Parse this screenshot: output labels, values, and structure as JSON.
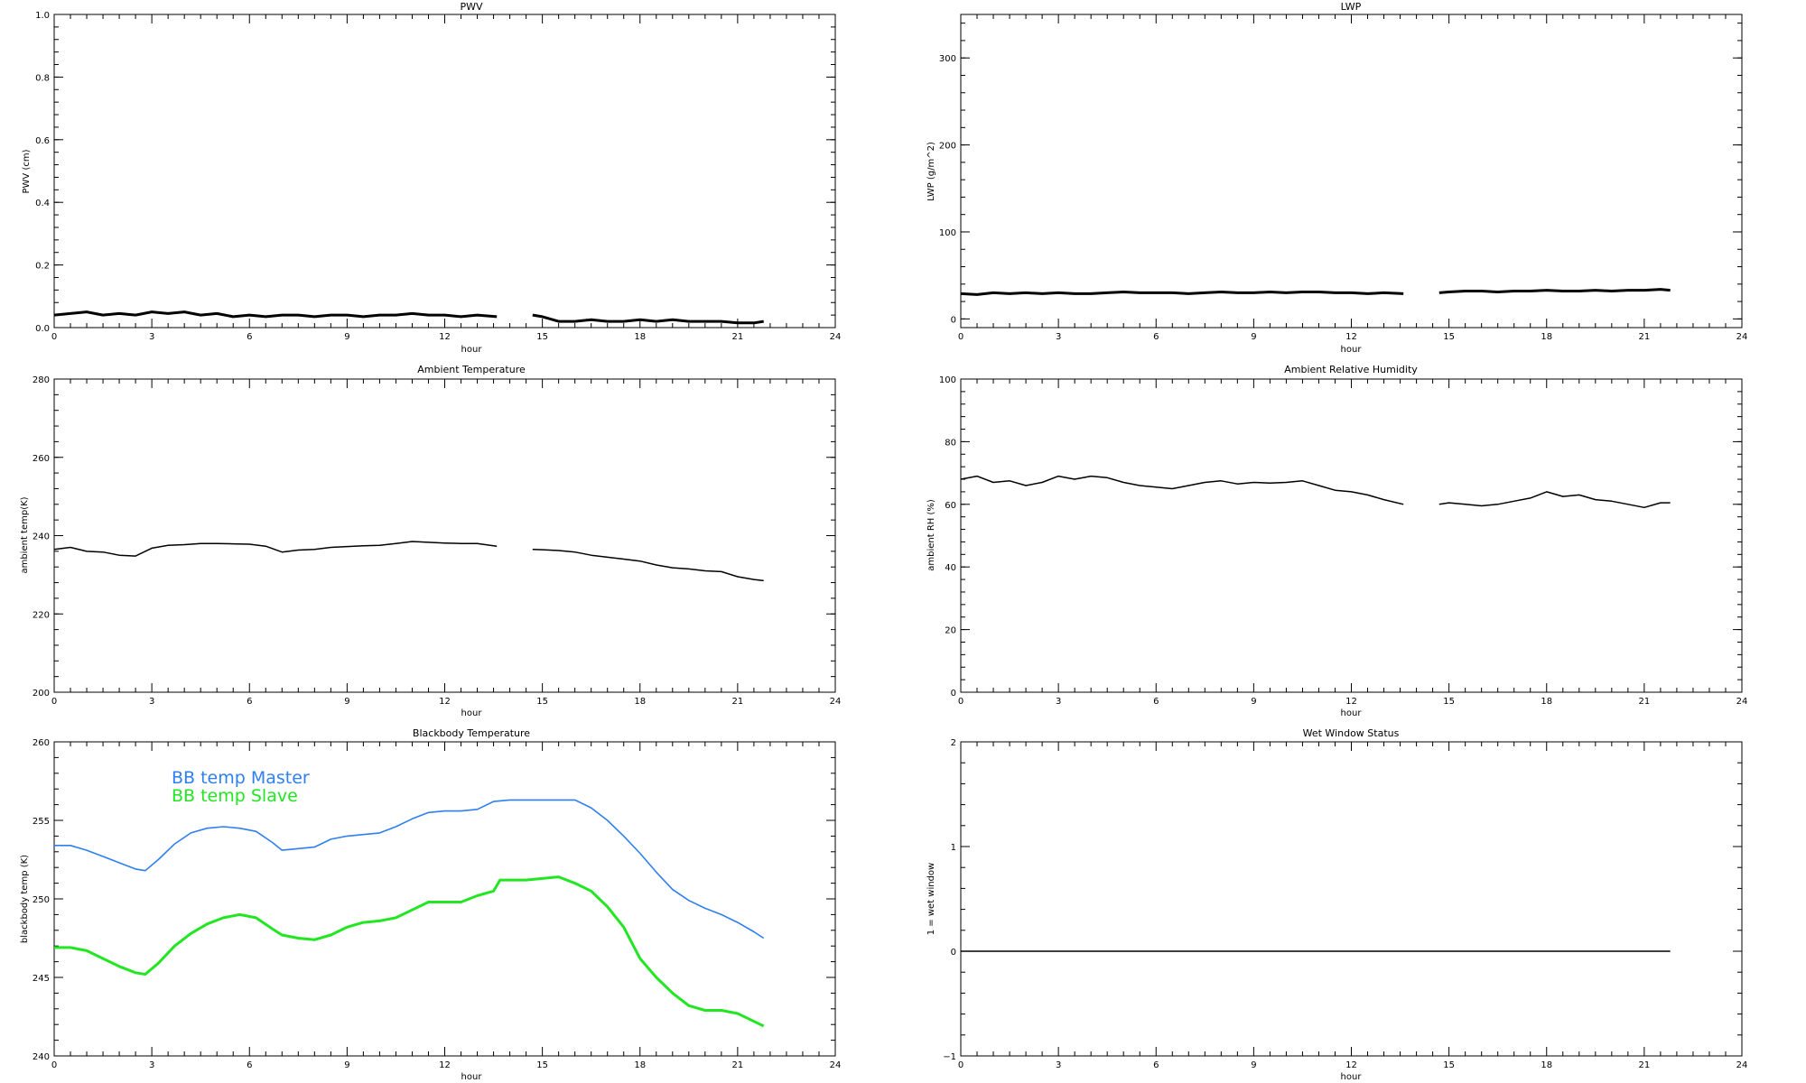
{
  "chart_data": [
    {
      "id": "pwv",
      "type": "line",
      "title": "PWV",
      "xlabel": "hour",
      "ylabel": "PWV (cm)",
      "xlim": [
        0,
        24
      ],
      "ylim": [
        0,
        1.0
      ],
      "xticks": [
        "0",
        "3",
        "6",
        "9",
        "12",
        "15",
        "18",
        "21",
        "24"
      ],
      "yticks": [
        "0.0",
        "0.2",
        "0.4",
        "0.6",
        "0.8",
        "1.0"
      ],
      "thick": true,
      "series": [
        {
          "color": "#000000",
          "x": [
            0,
            0.5,
            1,
            1.5,
            2,
            2.5,
            3,
            3.5,
            4,
            4.5,
            5,
            5.5,
            6,
            6.5,
            7,
            7.5,
            8,
            8.5,
            9,
            9.5,
            10,
            10.5,
            11,
            11.5,
            12,
            12.5,
            13,
            13.6,
            null,
            14.7,
            15,
            15.5,
            16,
            16.5,
            17,
            17.5,
            18,
            18.5,
            19,
            19.5,
            20,
            20.5,
            21,
            21.5,
            21.8
          ],
          "y": [
            0.04,
            0.045,
            0.05,
            0.04,
            0.045,
            0.04,
            0.05,
            0.045,
            0.05,
            0.04,
            0.045,
            0.035,
            0.04,
            0.035,
            0.04,
            0.04,
            0.035,
            0.04,
            0.04,
            0.035,
            0.04,
            0.04,
            0.045,
            0.04,
            0.04,
            0.035,
            0.04,
            0.035,
            null,
            0.04,
            0.035,
            0.02,
            0.02,
            0.025,
            0.02,
            0.02,
            0.025,
            0.02,
            0.025,
            0.02,
            0.02,
            0.02,
            0.015,
            0.015,
            0.02
          ]
        }
      ]
    },
    {
      "id": "lwp",
      "type": "line",
      "title": "LWP",
      "xlabel": "hour",
      "ylabel": "LWP (g/m^2)",
      "xlim": [
        0,
        24
      ],
      "ylim": [
        -10,
        350
      ],
      "xticks": [
        "0",
        "3",
        "6",
        "9",
        "12",
        "15",
        "18",
        "21",
        "24"
      ],
      "yticks": [
        "0",
        "100",
        "200",
        "300"
      ],
      "ytick_values": [
        0,
        100,
        200,
        300
      ],
      "thick": true,
      "series": [
        {
          "color": "#000000",
          "x": [
            0,
            0.5,
            1,
            1.5,
            2,
            2.5,
            3,
            3.5,
            4,
            4.5,
            5,
            5.5,
            6,
            6.5,
            7,
            7.5,
            8,
            8.5,
            9,
            9.5,
            10,
            10.5,
            11,
            11.5,
            12,
            12.5,
            13,
            13.6,
            null,
            14.7,
            15,
            15.5,
            16,
            16.5,
            17,
            17.5,
            18,
            18.5,
            19,
            19.5,
            20,
            20.5,
            21,
            21.5,
            21.8
          ],
          "y": [
            29,
            28,
            30,
            29,
            30,
            29,
            30,
            29,
            29,
            30,
            31,
            30,
            30,
            30,
            29,
            30,
            31,
            30,
            30,
            31,
            30,
            31,
            31,
            30,
            30,
            29,
            30,
            29,
            null,
            30,
            31,
            32,
            32,
            31,
            32,
            32,
            33,
            32,
            32,
            33,
            32,
            33,
            33,
            34,
            33
          ]
        }
      ]
    },
    {
      "id": "ambient-temperature",
      "type": "line",
      "title": "Ambient Temperature",
      "xlabel": "hour",
      "ylabel": "ambient temp(K)",
      "xlim": [
        0,
        24
      ],
      "ylim": [
        200,
        280
      ],
      "xticks": [
        "0",
        "3",
        "6",
        "9",
        "12",
        "15",
        "18",
        "21",
        "24"
      ],
      "yticks": [
        "200",
        "220",
        "240",
        "260",
        "280"
      ],
      "series": [
        {
          "color": "#000000",
          "x": [
            0,
            0.5,
            1,
            1.5,
            2,
            2.5,
            3,
            3.5,
            4,
            4.5,
            5,
            5.5,
            6,
            6.5,
            7,
            7.5,
            8,
            8.5,
            9,
            9.5,
            10,
            10.5,
            11,
            11.5,
            12,
            12.5,
            13,
            13.6,
            null,
            14.7,
            15,
            15.5,
            16,
            16.5,
            17,
            17.5,
            18,
            18.5,
            19,
            19.5,
            20,
            20.5,
            21,
            21.5,
            21.8
          ],
          "y": [
            236.5,
            237,
            236,
            235.8,
            235,
            234.8,
            236.8,
            237.5,
            237.7,
            238,
            238,
            237.9,
            237.8,
            237.3,
            235.8,
            236.3,
            236.5,
            237,
            237.2,
            237.4,
            237.5,
            238,
            238.5,
            238.3,
            238.1,
            238,
            238,
            237.3,
            null,
            236.5,
            236.4,
            236.2,
            235.8,
            235,
            234.5,
            234,
            233.5,
            232.5,
            231.8,
            231.5,
            231,
            230.8,
            229.5,
            228.8,
            228.5
          ]
        }
      ]
    },
    {
      "id": "ambient-relative-humidity",
      "type": "line",
      "title": "Ambient Relative Humidity",
      "xlabel": "hour",
      "ylabel": "ambient RH (%)",
      "xlim": [
        0,
        24
      ],
      "ylim": [
        0,
        100
      ],
      "xticks": [
        "0",
        "3",
        "6",
        "9",
        "12",
        "15",
        "18",
        "21",
        "24"
      ],
      "yticks": [
        "0",
        "20",
        "40",
        "60",
        "80",
        "100"
      ],
      "series": [
        {
          "color": "#000000",
          "x": [
            0,
            0.5,
            1,
            1.5,
            2,
            2.5,
            3,
            3.5,
            4,
            4.5,
            5,
            5.5,
            6,
            6.5,
            7,
            7.5,
            8,
            8.5,
            9,
            9.5,
            10,
            10.5,
            11,
            11.5,
            12,
            12.5,
            13,
            13.6,
            null,
            14.7,
            15,
            15.5,
            16,
            16.5,
            17,
            17.5,
            18,
            18.5,
            19,
            19.5,
            20,
            20.5,
            21,
            21.5,
            21.8
          ],
          "y": [
            68,
            69,
            67,
            67.5,
            66,
            67,
            69,
            68,
            69,
            68.5,
            67,
            66,
            65.5,
            65,
            66,
            67,
            67.5,
            66.5,
            67,
            66.8,
            67,
            67.5,
            66,
            64.5,
            64,
            63,
            61.5,
            60,
            null,
            60,
            60.5,
            60,
            59.5,
            60,
            61,
            62,
            64,
            62.5,
            63,
            61.5,
            61,
            60,
            59,
            60.5,
            60.5
          ]
        }
      ]
    },
    {
      "id": "blackbody-temperature",
      "type": "line",
      "title": "Blackbody Temperature",
      "xlabel": "hour",
      "ylabel": "blackbody temp (K)",
      "xlim": [
        0,
        24
      ],
      "ylim": [
        240,
        260
      ],
      "xticks": [
        "0",
        "3",
        "6",
        "9",
        "12",
        "15",
        "18",
        "21",
        "24"
      ],
      "yticks": [
        "240",
        "245",
        "250",
        "255",
        "260"
      ],
      "legend_position": "top-left",
      "series": [
        {
          "name": "BB temp Master",
          "color": "#2f7ff0",
          "width": 1.6,
          "x": [
            0,
            0.5,
            1,
            1.5,
            2,
            2.5,
            2.8,
            3.2,
            3.7,
            4.2,
            4.7,
            5.2,
            5.7,
            6.2,
            6.7,
            7,
            7.5,
            8,
            8.5,
            9,
            9.5,
            10,
            10.5,
            11,
            11.5,
            12,
            12.5,
            13,
            13.5,
            14,
            14.5,
            15,
            15.5,
            16,
            16.5,
            17,
            17.5,
            18,
            18.5,
            19,
            19.5,
            20,
            20.5,
            21,
            21.5,
            21.8
          ],
          "y": [
            253.4,
            253.4,
            253.1,
            252.7,
            252.3,
            251.9,
            251.8,
            252.5,
            253.5,
            254.2,
            254.5,
            254.6,
            254.5,
            254.3,
            253.6,
            253.1,
            253.2,
            253.3,
            253.8,
            254,
            254.1,
            254.2,
            254.6,
            255.1,
            255.5,
            255.6,
            255.6,
            255.7,
            256.2,
            256.3,
            256.3,
            256.3,
            256.3,
            256.3,
            255.8,
            255,
            254,
            252.9,
            251.7,
            250.6,
            249.9,
            249.4,
            249,
            248.5,
            247.9,
            247.5
          ]
        },
        {
          "name": "BB temp Slave",
          "color": "#22e622",
          "width": 3,
          "x": [
            0,
            0.5,
            1,
            1.5,
            2,
            2.5,
            2.8,
            3.2,
            3.7,
            4.2,
            4.7,
            5.2,
            5.7,
            6.2,
            6.7,
            7,
            7.5,
            8,
            8.5,
            9,
            9.5,
            10,
            10.5,
            11,
            11.5,
            12,
            12.5,
            13,
            13.5,
            13.7,
            14,
            14.5,
            15,
            15.5,
            16,
            16.5,
            17,
            17.5,
            18,
            18.5,
            19,
            19.5,
            20,
            20.5,
            21,
            21.5,
            21.8
          ],
          "y": [
            246.9,
            246.9,
            246.7,
            246.2,
            245.7,
            245.3,
            245.2,
            245.9,
            247,
            247.8,
            248.4,
            248.8,
            249,
            248.8,
            248.1,
            247.7,
            247.5,
            247.4,
            247.7,
            248.2,
            248.5,
            248.6,
            248.8,
            249.3,
            249.8,
            249.8,
            249.8,
            250.2,
            250.5,
            251.2,
            251.2,
            251.2,
            251.3,
            251.4,
            251,
            250.5,
            249.5,
            248.2,
            246.2,
            245,
            244,
            243.2,
            242.9,
            242.9,
            242.7,
            242.2,
            241.9
          ]
        }
      ]
    },
    {
      "id": "wet-window-status",
      "type": "line",
      "title": "Wet Window Status",
      "xlabel": "hour",
      "ylabel": "1 = wet window",
      "xlim": [
        0,
        24
      ],
      "ylim": [
        -1,
        2
      ],
      "xticks": [
        "0",
        "3",
        "6",
        "9",
        "12",
        "15",
        "18",
        "21",
        "24"
      ],
      "yticks": [
        "−1",
        "0",
        "1",
        "2"
      ],
      "ytick_values": [
        -1,
        0,
        1,
        2
      ],
      "series": [
        {
          "color": "#000000",
          "x": [
            0,
            21.8
          ],
          "y": [
            0,
            0
          ]
        }
      ]
    }
  ]
}
